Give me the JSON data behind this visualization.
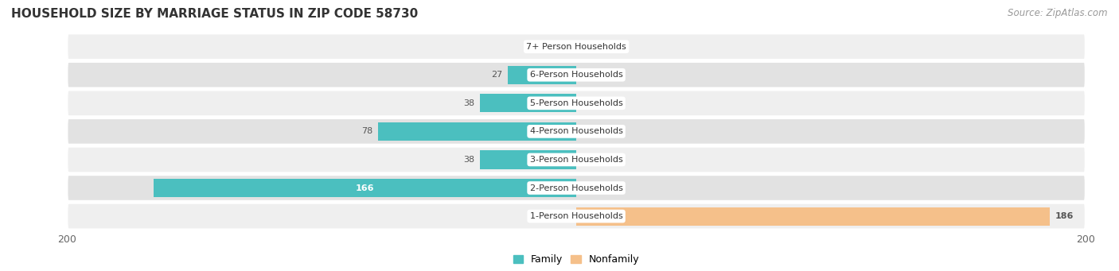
{
  "title": "HOUSEHOLD SIZE BY MARRIAGE STATUS IN ZIP CODE 58730",
  "source": "Source: ZipAtlas.com",
  "categories": [
    "7+ Person Households",
    "6-Person Households",
    "5-Person Households",
    "4-Person Households",
    "3-Person Households",
    "2-Person Households",
    "1-Person Households"
  ],
  "family_values": [
    0,
    27,
    38,
    78,
    38,
    166,
    0
  ],
  "nonfamily_values": [
    0,
    0,
    0,
    0,
    0,
    0,
    186
  ],
  "family_color": "#4BBFBF",
  "nonfamily_color": "#F5C08A",
  "row_bg_even": "#EFEFEF",
  "row_bg_odd": "#E2E2E2",
  "xlim": 200,
  "title_fontsize": 11,
  "source_fontsize": 8.5,
  "tick_fontsize": 9,
  "cat_fontsize": 8,
  "val_fontsize": 8
}
